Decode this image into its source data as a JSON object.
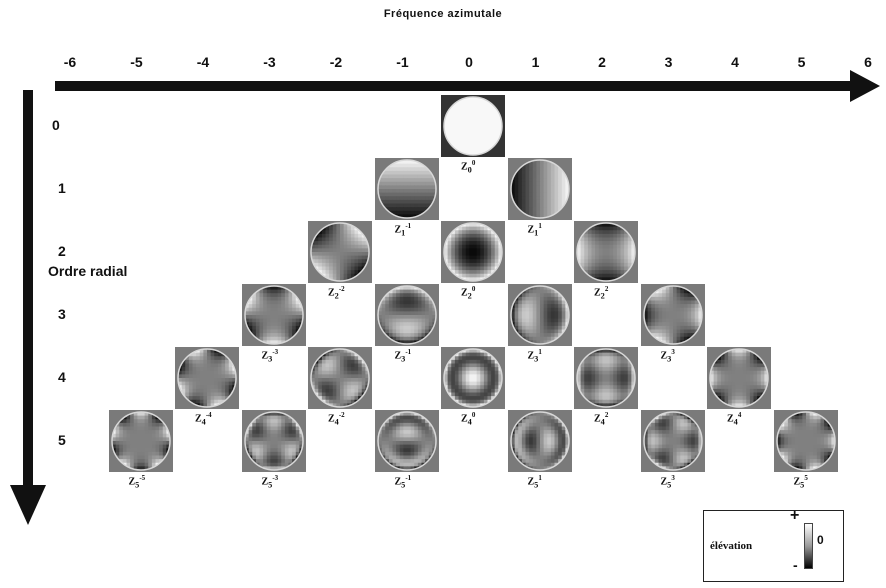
{
  "header": {
    "title": "Fréquence azimutale"
  },
  "axis": {
    "radial_label": "Ordre radial",
    "m_ticks": [
      "-6",
      "-5",
      "-4",
      "-3",
      "-2",
      "-1",
      "0",
      "1",
      "2",
      "3",
      "4",
      "5",
      "6"
    ],
    "n_rows": [
      "0",
      "1",
      "2",
      "3",
      "4",
      "5"
    ]
  },
  "modes": [
    {
      "n": 0,
      "m": 0,
      "base": "Z",
      "sub": "0",
      "sup": "0"
    },
    {
      "n": 1,
      "m": -1,
      "base": "Z",
      "sub": "1",
      "sup": "-1"
    },
    {
      "n": 1,
      "m": 1,
      "base": "Z",
      "sub": "1",
      "sup": "1"
    },
    {
      "n": 2,
      "m": -2,
      "base": "Z",
      "sub": "2",
      "sup": "-2"
    },
    {
      "n": 2,
      "m": 0,
      "base": "Z",
      "sub": "2",
      "sup": "0"
    },
    {
      "n": 2,
      "m": 2,
      "base": "Z",
      "sub": "2",
      "sup": "2"
    },
    {
      "n": 3,
      "m": -3,
      "base": "Z",
      "sub": "3",
      "sup": "-3"
    },
    {
      "n": 3,
      "m": -1,
      "base": "Z",
      "sub": "3",
      "sup": "-1"
    },
    {
      "n": 3,
      "m": 1,
      "base": "Z",
      "sub": "3",
      "sup": "1"
    },
    {
      "n": 3,
      "m": 3,
      "base": "Z",
      "sub": "3",
      "sup": "3"
    },
    {
      "n": 4,
      "m": -4,
      "base": "Z",
      "sub": "4",
      "sup": "-4"
    },
    {
      "n": 4,
      "m": -2,
      "base": "Z",
      "sub": "4",
      "sup": "-2"
    },
    {
      "n": 4,
      "m": 0,
      "base": "Z",
      "sub": "4",
      "sup": "0"
    },
    {
      "n": 4,
      "m": 2,
      "base": "Z",
      "sub": "4",
      "sup": "2"
    },
    {
      "n": 4,
      "m": 4,
      "base": "Z",
      "sub": "4",
      "sup": "4"
    },
    {
      "n": 5,
      "m": -5,
      "base": "Z",
      "sub": "5",
      "sup": "-5"
    },
    {
      "n": 5,
      "m": -3,
      "base": "Z",
      "sub": "5",
      "sup": "-3"
    },
    {
      "n": 5,
      "m": -1,
      "base": "Z",
      "sub": "5",
      "sup": "-1"
    },
    {
      "n": 5,
      "m": 1,
      "base": "Z",
      "sub": "5",
      "sup": "1"
    },
    {
      "n": 5,
      "m": 3,
      "base": "Z",
      "sub": "5",
      "sup": "3"
    },
    {
      "n": 5,
      "m": 5,
      "base": "Z",
      "sub": "5",
      "sup": "5"
    }
  ],
  "legend": {
    "label": "élévation",
    "plus": "+",
    "minus": "-",
    "zero": "0"
  },
  "colors": {
    "axis": "#111111",
    "tile_bg": "#7a7a7a"
  }
}
